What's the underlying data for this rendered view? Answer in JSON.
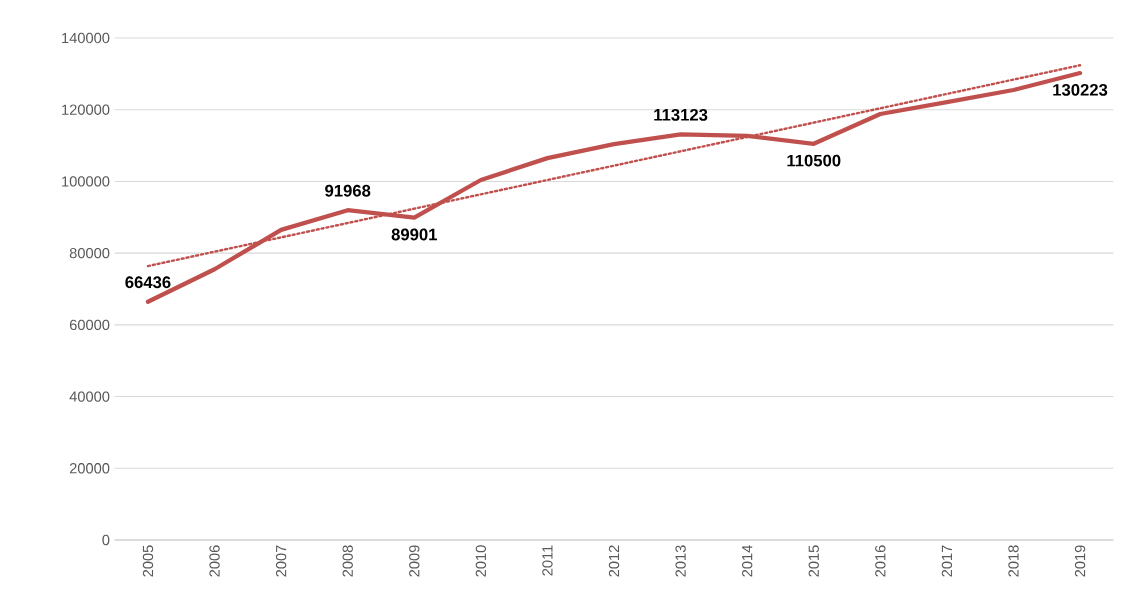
{
  "chart_data": {
    "type": "line",
    "categories": [
      "2005",
      "2006",
      "2007",
      "2008",
      "2009",
      "2010",
      "2011",
      "2012",
      "2013",
      "2014",
      "2015",
      "2016",
      "2017",
      "2018",
      "2019"
    ],
    "series": [
      {
        "color": "#c0504d",
        "line_style": "solid",
        "values": [
          66436,
          75500,
          86500,
          91968,
          89901,
          100400,
          106500,
          110400,
          113123,
          112700,
          110500,
          118800,
          122100,
          125500,
          130223
        ],
        "value_labels": [
          "66436",
          null,
          null,
          "91968",
          "89901",
          null,
          null,
          null,
          "113123",
          null,
          "110500",
          null,
          null,
          null,
          "130223"
        ]
      },
      {
        "type": "line",
        "color": "#c0504d",
        "line_style": "dotted",
        "values": [
          76400,
          80400,
          84400,
          88400,
          92400,
          96400,
          100400,
          104400,
          108400,
          112400,
          116400,
          120400,
          124400,
          128400,
          132400
        ]
      }
    ],
    "ylim": [
      0,
      140000
    ],
    "yticks": [
      0,
      20000,
      40000,
      60000,
      80000,
      100000,
      120000,
      140000
    ],
    "grid": "y"
  }
}
